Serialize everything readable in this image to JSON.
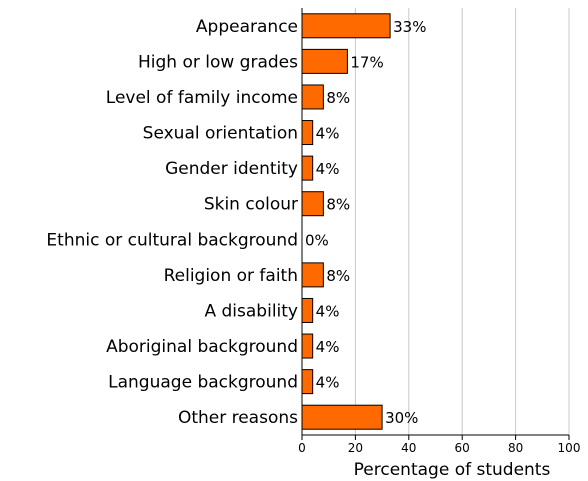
{
  "chart_data": {
    "type": "bar",
    "orientation": "horizontal",
    "categories": [
      "Appearance",
      "High or low grades",
      "Level of family income",
      "Sexual orientation",
      "Gender identity",
      "Skin colour",
      "Ethnic or cultural background",
      "Religion or faith",
      "A disability",
      "Aboriginal background",
      "Language background",
      "Other reasons"
    ],
    "values": [
      33,
      17,
      8,
      4,
      4,
      8,
      0,
      8,
      4,
      4,
      4,
      30
    ],
    "data_labels": [
      "33%",
      "17%",
      "8%",
      "4%",
      "4%",
      "8%",
      "0%",
      "8%",
      "4%",
      "4%",
      "4%",
      "30%"
    ],
    "xlabel": "Percentage of students",
    "xlim": [
      0,
      100
    ],
    "xticks": [
      0,
      20,
      40,
      60,
      80,
      100
    ],
    "grid": true,
    "bar_color": "#ff6a00"
  }
}
